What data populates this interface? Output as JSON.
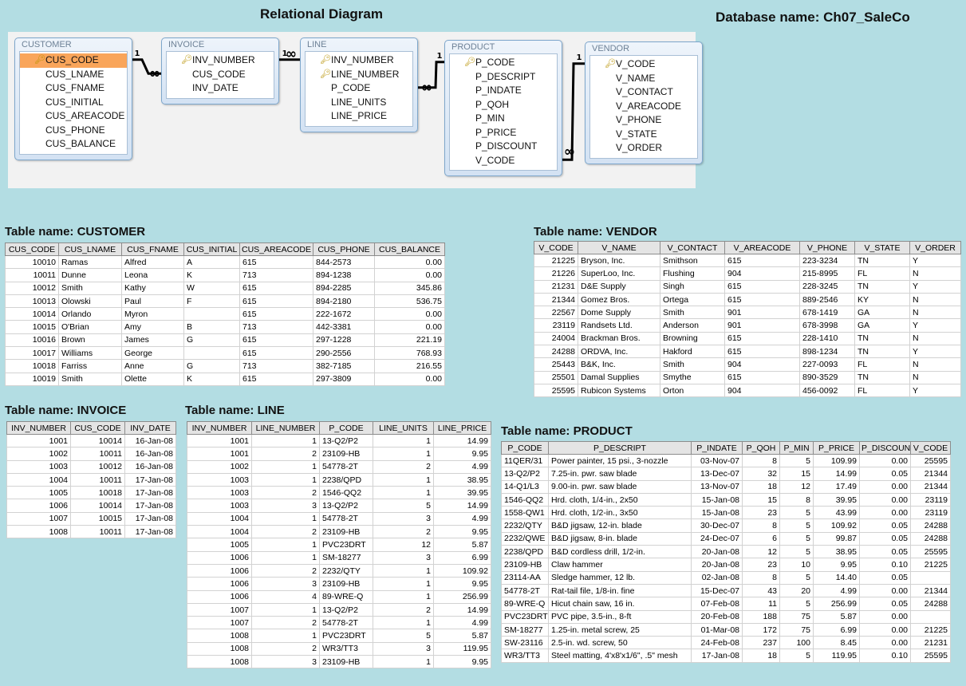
{
  "diagram_title": "Relational Diagram",
  "database_label": "Database name: Ch07_SaleCo",
  "diagram": {
    "entities": [
      {
        "name": "CUSTOMER",
        "fields": [
          "CUS_CODE",
          "CUS_LNAME",
          "CUS_FNAME",
          "CUS_INITIAL",
          "CUS_AREACODE",
          "CUS_PHONE",
          "CUS_BALANCE"
        ],
        "keys": [
          0
        ],
        "selected": 0
      },
      {
        "name": "INVOICE",
        "fields": [
          "INV_NUMBER",
          "CUS_CODE",
          "INV_DATE"
        ],
        "keys": [
          0
        ]
      },
      {
        "name": "LINE",
        "fields": [
          "INV_NUMBER",
          "LINE_NUMBER",
          "P_CODE",
          "LINE_UNITS",
          "LINE_PRICE"
        ],
        "keys": [
          0,
          1
        ]
      },
      {
        "name": "PRODUCT",
        "fields": [
          "P_CODE",
          "P_DESCRIPT",
          "P_INDATE",
          "P_QOH",
          "P_MIN",
          "P_PRICE",
          "P_DISCOUNT",
          "V_CODE"
        ],
        "keys": [
          0
        ]
      },
      {
        "name": "VENDOR",
        "fields": [
          "V_CODE",
          "V_NAME",
          "V_CONTACT",
          "V_AREACODE",
          "V_PHONE",
          "V_STATE",
          "V_ORDER"
        ],
        "keys": [
          0
        ]
      }
    ],
    "relationships": [
      {
        "one": "CUSTOMER",
        "many": "INVOICE",
        "one_label": "1",
        "many_label": "∞"
      },
      {
        "one": "INVOICE",
        "many": "LINE",
        "one_label": "1",
        "many_label": "∞"
      },
      {
        "one": "PRODUCT",
        "many": "LINE",
        "one_label": "1",
        "many_label": "∞"
      },
      {
        "one": "VENDOR",
        "many": "PRODUCT",
        "one_label": "1",
        "many_label": "∞"
      }
    ]
  },
  "tables": {
    "customer": {
      "title": "Table name: CUSTOMER",
      "columns": [
        "CUS_CODE",
        "CUS_LNAME",
        "CUS_FNAME",
        "CUS_INITIAL",
        "CUS_AREACODE",
        "CUS_PHONE",
        "CUS_BALANCE"
      ],
      "rows": [
        [
          "10010",
          "Ramas",
          "Alfred",
          "A",
          "615",
          "844-2573",
          "0.00"
        ],
        [
          "10011",
          "Dunne",
          "Leona",
          "K",
          "713",
          "894-1238",
          "0.00"
        ],
        [
          "10012",
          "Smith",
          "Kathy",
          "W",
          "615",
          "894-2285",
          "345.86"
        ],
        [
          "10013",
          "Olowski",
          "Paul",
          "F",
          "615",
          "894-2180",
          "536.75"
        ],
        [
          "10014",
          "Orlando",
          "Myron",
          "",
          "615",
          "222-1672",
          "0.00"
        ],
        [
          "10015",
          "O'Brian",
          "Amy",
          "B",
          "713",
          "442-3381",
          "0.00"
        ],
        [
          "10016",
          "Brown",
          "James",
          "G",
          "615",
          "297-1228",
          "221.19"
        ],
        [
          "10017",
          "Williams",
          "George",
          "",
          "615",
          "290-2556",
          "768.93"
        ],
        [
          "10018",
          "Farriss",
          "Anne",
          "G",
          "713",
          "382-7185",
          "216.55"
        ],
        [
          "10019",
          "Smith",
          "Olette",
          "K",
          "615",
          "297-3809",
          "0.00"
        ]
      ]
    },
    "vendor": {
      "title": "Table name: VENDOR",
      "columns": [
        "V_CODE",
        "V_NAME",
        "V_CONTACT",
        "V_AREACODE",
        "V_PHONE",
        "V_STATE",
        "V_ORDER"
      ],
      "rows": [
        [
          "21225",
          "Bryson, Inc.",
          "Smithson",
          "615",
          "223-3234",
          "TN",
          "Y"
        ],
        [
          "21226",
          "SuperLoo, Inc.",
          "Flushing",
          "904",
          "215-8995",
          "FL",
          "N"
        ],
        [
          "21231",
          "D&E Supply",
          "Singh",
          "615",
          "228-3245",
          "TN",
          "Y"
        ],
        [
          "21344",
          "Gomez Bros.",
          "Ortega",
          "615",
          "889-2546",
          "KY",
          "N"
        ],
        [
          "22567",
          "Dome Supply",
          "Smith",
          "901",
          "678-1419",
          "GA",
          "N"
        ],
        [
          "23119",
          "Randsets Ltd.",
          "Anderson",
          "901",
          "678-3998",
          "GA",
          "Y"
        ],
        [
          "24004",
          "Brackman Bros.",
          "Browning",
          "615",
          "228-1410",
          "TN",
          "N"
        ],
        [
          "24288",
          "ORDVA, Inc.",
          "Hakford",
          "615",
          "898-1234",
          "TN",
          "Y"
        ],
        [
          "25443",
          "B&K, Inc.",
          "Smith",
          "904",
          "227-0093",
          "FL",
          "N"
        ],
        [
          "25501",
          "Damal Supplies",
          "Smythe",
          "615",
          "890-3529",
          "TN",
          "N"
        ],
        [
          "25595",
          "Rubicon Systems",
          "Orton",
          "904",
          "456-0092",
          "FL",
          "Y"
        ]
      ]
    },
    "invoice": {
      "title": "Table name: INVOICE",
      "columns": [
        "INV_NUMBER",
        "CUS_CODE",
        "INV_DATE"
      ],
      "rows": [
        [
          "1001",
          "10014",
          "16-Jan-08"
        ],
        [
          "1002",
          "10011",
          "16-Jan-08"
        ],
        [
          "1003",
          "10012",
          "16-Jan-08"
        ],
        [
          "1004",
          "10011",
          "17-Jan-08"
        ],
        [
          "1005",
          "10018",
          "17-Jan-08"
        ],
        [
          "1006",
          "10014",
          "17-Jan-08"
        ],
        [
          "1007",
          "10015",
          "17-Jan-08"
        ],
        [
          "1008",
          "10011",
          "17-Jan-08"
        ]
      ]
    },
    "line": {
      "title": "Table name: LINE",
      "columns": [
        "INV_NUMBER",
        "LINE_NUMBER",
        "P_CODE",
        "LINE_UNITS",
        "LINE_PRICE"
      ],
      "rows": [
        [
          "1001",
          "1",
          "13-Q2/P2",
          "1",
          "14.99"
        ],
        [
          "1001",
          "2",
          "23109-HB",
          "1",
          "9.95"
        ],
        [
          "1002",
          "1",
          "54778-2T",
          "2",
          "4.99"
        ],
        [
          "1003",
          "1",
          "2238/QPD",
          "1",
          "38.95"
        ],
        [
          "1003",
          "2",
          "1546-QQ2",
          "1",
          "39.95"
        ],
        [
          "1003",
          "3",
          "13-Q2/P2",
          "5",
          "14.99"
        ],
        [
          "1004",
          "1",
          "54778-2T",
          "3",
          "4.99"
        ],
        [
          "1004",
          "2",
          "23109-HB",
          "2",
          "9.95"
        ],
        [
          "1005",
          "1",
          "PVC23DRT",
          "12",
          "5.87"
        ],
        [
          "1006",
          "1",
          "SM-18277",
          "3",
          "6.99"
        ],
        [
          "1006",
          "2",
          "2232/QTY",
          "1",
          "109.92"
        ],
        [
          "1006",
          "3",
          "23109-HB",
          "1",
          "9.95"
        ],
        [
          "1006",
          "4",
          "89-WRE-Q",
          "1",
          "256.99"
        ],
        [
          "1007",
          "1",
          "13-Q2/P2",
          "2",
          "14.99"
        ],
        [
          "1007",
          "2",
          "54778-2T",
          "1",
          "4.99"
        ],
        [
          "1008",
          "1",
          "PVC23DRT",
          "5",
          "5.87"
        ],
        [
          "1008",
          "2",
          "WR3/TT3",
          "3",
          "119.95"
        ],
        [
          "1008",
          "3",
          "23109-HB",
          "1",
          "9.95"
        ]
      ]
    },
    "product": {
      "title": "Table name: PRODUCT",
      "columns": [
        "P_CODE",
        "P_DESCRIPT",
        "P_INDATE",
        "P_QOH",
        "P_MIN",
        "P_PRICE",
        "P_DISCOUNT",
        "V_CODE"
      ],
      "rows": [
        [
          "11QER/31",
          "Power painter, 15 psi., 3-nozzle",
          "03-Nov-07",
          "8",
          "5",
          "109.99",
          "0.00",
          "25595"
        ],
        [
          "13-Q2/P2",
          "7.25-in. pwr. saw blade",
          "13-Dec-07",
          "32",
          "15",
          "14.99",
          "0.05",
          "21344"
        ],
        [
          "14-Q1/L3",
          "9.00-in. pwr. saw blade",
          "13-Nov-07",
          "18",
          "12",
          "17.49",
          "0.00",
          "21344"
        ],
        [
          "1546-QQ2",
          "Hrd. cloth, 1/4-in., 2x50",
          "15-Jan-08",
          "15",
          "8",
          "39.95",
          "0.00",
          "23119"
        ],
        [
          "1558-QW1",
          "Hrd. cloth, 1/2-in., 3x50",
          "15-Jan-08",
          "23",
          "5",
          "43.99",
          "0.00",
          "23119"
        ],
        [
          "2232/QTY",
          "B&D jigsaw, 12-in. blade",
          "30-Dec-07",
          "8",
          "5",
          "109.92",
          "0.05",
          "24288"
        ],
        [
          "2232/QWE",
          "B&D jigsaw, 8-in. blade",
          "24-Dec-07",
          "6",
          "5",
          "99.87",
          "0.05",
          "24288"
        ],
        [
          "2238/QPD",
          "B&D cordless drill, 1/2-in.",
          "20-Jan-08",
          "12",
          "5",
          "38.95",
          "0.05",
          "25595"
        ],
        [
          "23109-HB",
          "Claw hammer",
          "20-Jan-08",
          "23",
          "10",
          "9.95",
          "0.10",
          "21225"
        ],
        [
          "23114-AA",
          "Sledge hammer, 12 lb.",
          "02-Jan-08",
          "8",
          "5",
          "14.40",
          "0.05",
          ""
        ],
        [
          "54778-2T",
          "Rat-tail file, 1/8-in. fine",
          "15-Dec-07",
          "43",
          "20",
          "4.99",
          "0.00",
          "21344"
        ],
        [
          "89-WRE-Q",
          "Hicut chain saw, 16 in.",
          "07-Feb-08",
          "11",
          "5",
          "256.99",
          "0.05",
          "24288"
        ],
        [
          "PVC23DRT",
          "PVC pipe, 3.5-in., 8-ft",
          "20-Feb-08",
          "188",
          "75",
          "5.87",
          "0.00",
          ""
        ],
        [
          "SM-18277",
          "1.25-in. metal screw, 25",
          "01-Mar-08",
          "172",
          "75",
          "6.99",
          "0.00",
          "21225"
        ],
        [
          "SW-23116",
          "2.5-in. wd. screw, 50",
          "24-Feb-08",
          "237",
          "100",
          "8.45",
          "0.00",
          "21231"
        ],
        [
          "WR3/TT3",
          "Steel matting, 4'x8'x1/6\", .5\" mesh",
          "17-Jan-08",
          "18",
          "5",
          "119.95",
          "0.10",
          "25595"
        ]
      ]
    }
  }
}
